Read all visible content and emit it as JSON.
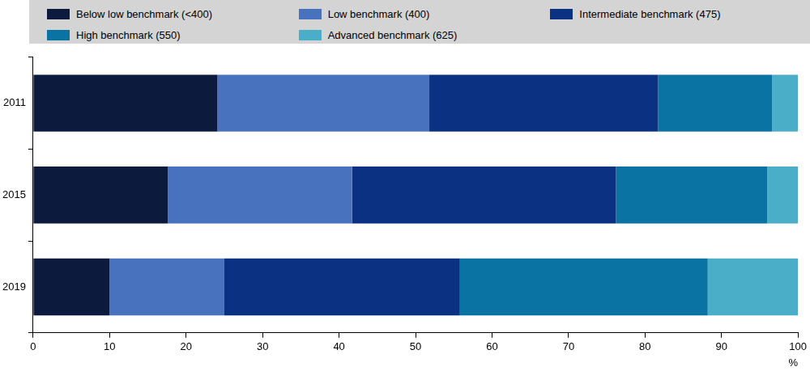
{
  "chart_data": {
    "type": "bar",
    "orientation": "horizontal",
    "stacked": true,
    "grid": false,
    "legend": "top",
    "categories": [
      "2011",
      "2015",
      "2019"
    ],
    "series": [
      {
        "name": "Below low benchmark (<400)",
        "color": "#0b1a3d",
        "values": [
          24.1,
          17.6,
          10.0
        ]
      },
      {
        "name": "Low benchmark (400)",
        "color": "#4872bd",
        "values": [
          27.7,
          24.1,
          15.0
        ]
      },
      {
        "name": "Intermediate benchmark (475)",
        "color": "#0b3282",
        "values": [
          29.9,
          34.5,
          30.8
        ]
      },
      {
        "name": "High benchmark (550)",
        "color": "#0b72a4",
        "values": [
          14.9,
          19.8,
          32.4
        ]
      },
      {
        "name": "Advanced benchmark (625)",
        "color": "#4aaec8",
        "values": [
          3.4,
          4.0,
          11.8
        ]
      }
    ],
    "xlim": [
      0,
      100
    ],
    "xticks": [
      0,
      10,
      20,
      30,
      40,
      50,
      60,
      70,
      80,
      90,
      100
    ],
    "xlabel": "%"
  }
}
